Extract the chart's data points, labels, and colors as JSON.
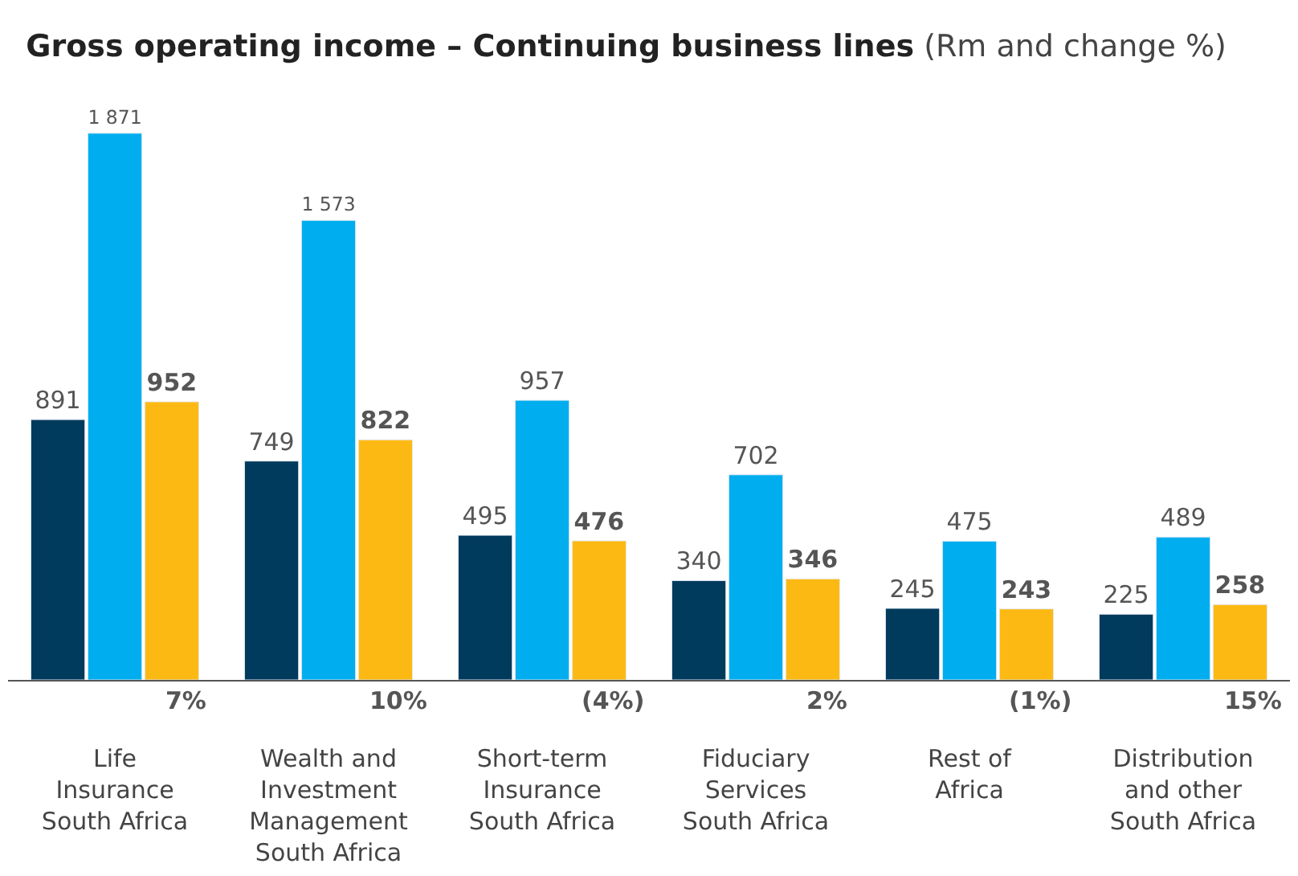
{
  "chart_data": {
    "type": "bar",
    "title": "Gross operating income – Continuing business lines",
    "subtitle": "(Rm and change %)",
    "categories": [
      "Life Insurance South Africa",
      "Wealth and Investment Management South Africa",
      "Short-term Insurance South Africa",
      "Fiduciary Services South Africa",
      "Rest of Africa",
      "Distribution and other South Africa"
    ],
    "series": [
      {
        "color": "#003a5c",
        "values": [
          891,
          749,
          495,
          340,
          245,
          225
        ]
      },
      {
        "color": "#00aeef",
        "values": [
          1871,
          1573,
          957,
          702,
          475,
          489
        ]
      },
      {
        "color": "#fdb913",
        "values": [
          952,
          822,
          476,
          346,
          243,
          258
        ]
      }
    ],
    "data_labels": true,
    "annotations": [
      "7%",
      "10%",
      "(4%)",
      "2%",
      "(1%)",
      "15%"
    ]
  }
}
